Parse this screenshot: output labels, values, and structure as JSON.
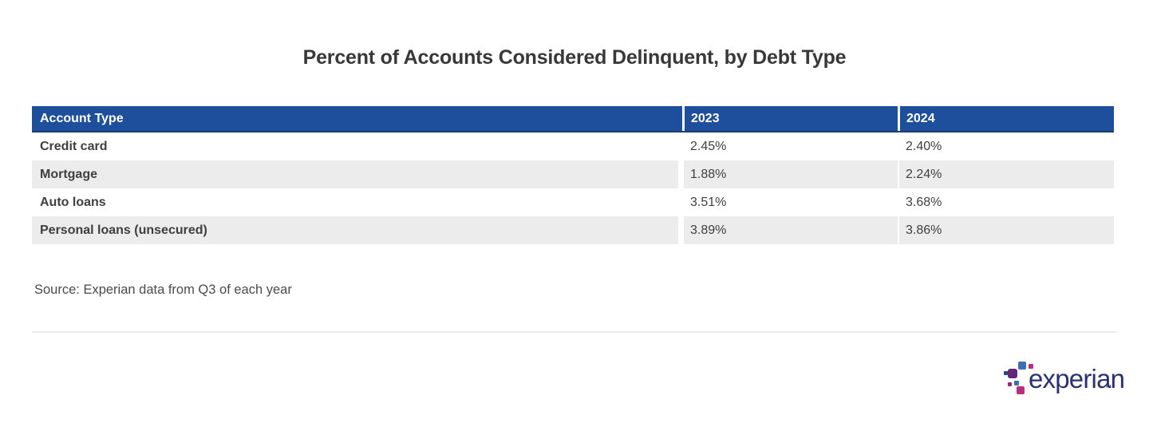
{
  "title": "Percent of Accounts Considered Delinquent, by Debt Type",
  "source_note": "Source: Experian data from Q3 of each year",
  "logo": {
    "wordmark": "experian",
    "trademark": "™"
  },
  "colors": {
    "header_bg": "#1E4F9C",
    "header_text": "#FFFFFF",
    "row_stripe": "#ECECEC",
    "body_text": "#3F3F3F",
    "title_text": "#383838",
    "logo_navy_text": "#2B3172",
    "logo_dark_blue": "#26478D",
    "logo_blue": "#406EB3",
    "logo_purple": "#632678",
    "logo_magenta": "#982881",
    "logo_pink": "#BA2F7D"
  },
  "chart_data": {
    "type": "table",
    "title": "Percent of Accounts Considered Delinquent, by Debt Type",
    "columns": [
      "Account Type",
      "2023",
      "2024"
    ],
    "rows": [
      [
        "Credit card",
        "2.45%",
        "2.40%"
      ],
      [
        "Mortgage",
        "1.88%",
        "2.24%"
      ],
      [
        "Auto loans",
        "3.51%",
        "3.68%"
      ],
      [
        "Personal loans (unsecured)",
        "3.89%",
        "3.86%"
      ]
    ],
    "source": "Source: Experian data from Q3 of each year"
  }
}
